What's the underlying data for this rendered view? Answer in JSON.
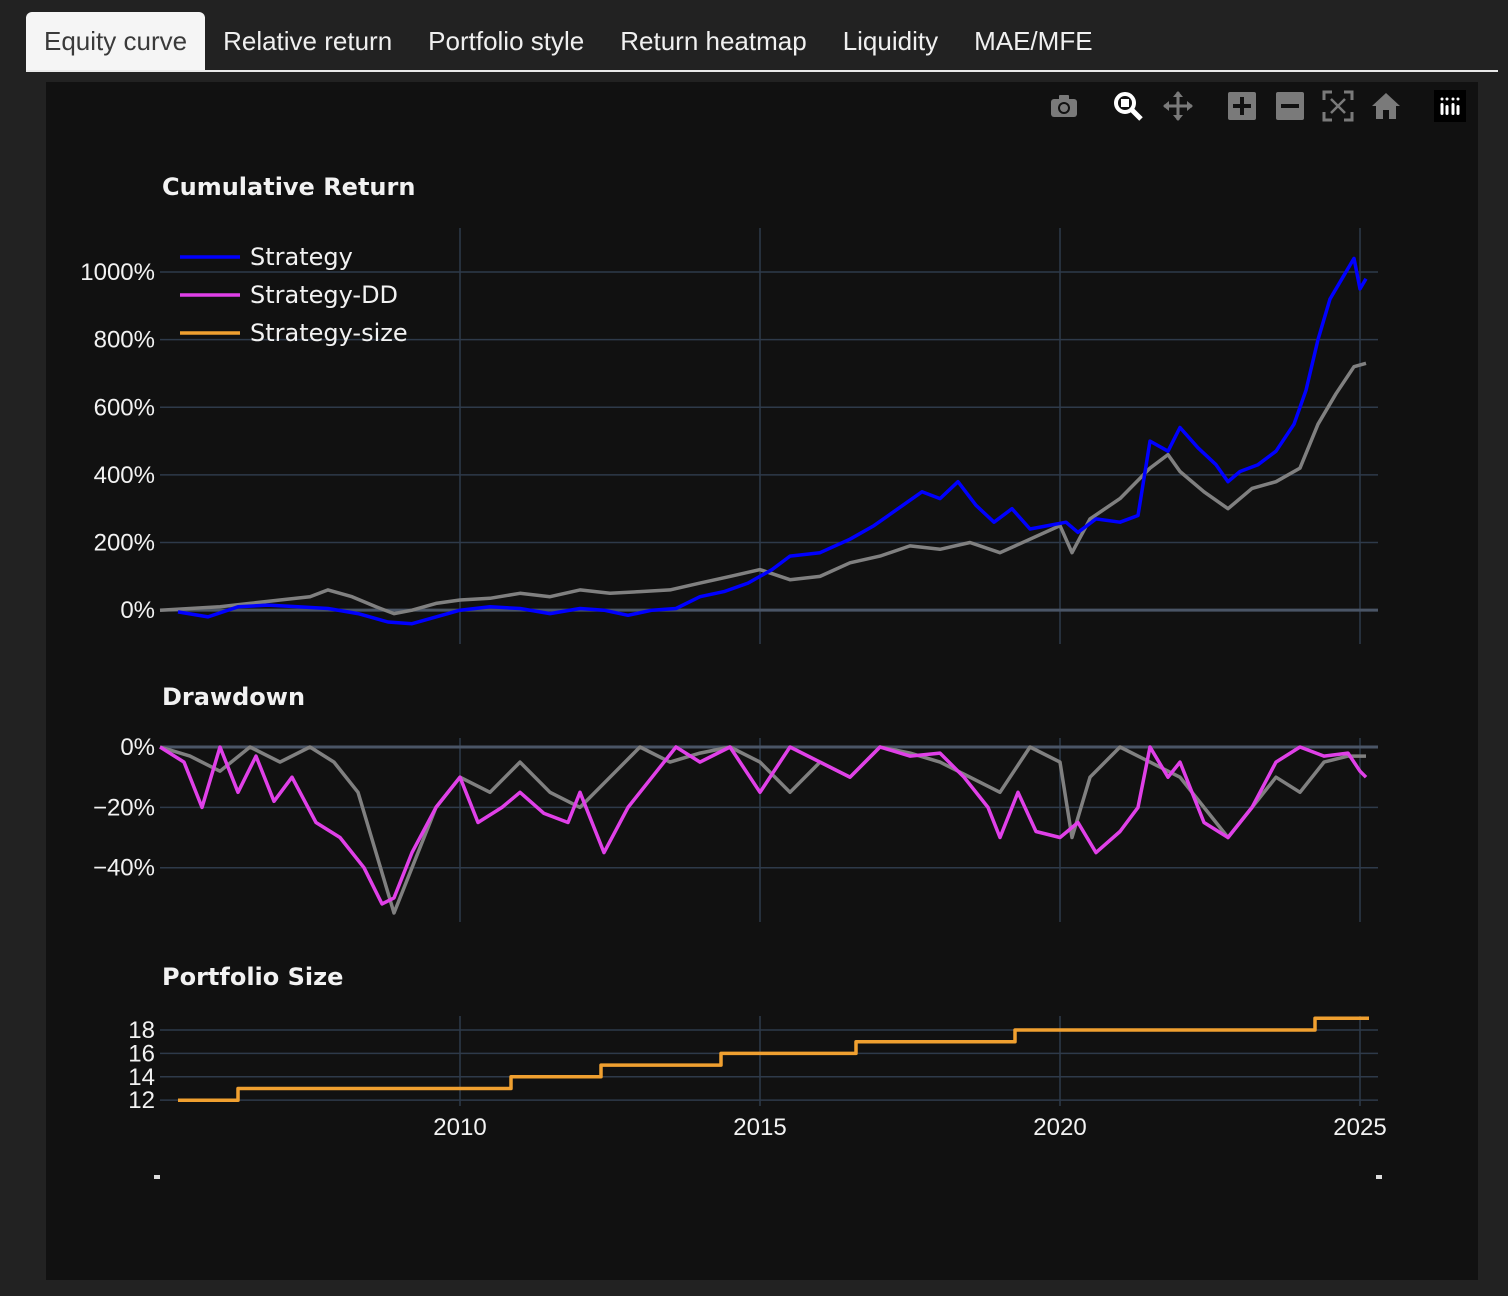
{
  "tabs": [
    {
      "label": "Equity curve",
      "active": true
    },
    {
      "label": "Relative return",
      "active": false
    },
    {
      "label": "Portfolio style",
      "active": false
    },
    {
      "label": "Return heatmap",
      "active": false
    },
    {
      "label": "Liquidity",
      "active": false
    },
    {
      "label": "MAE/MFE",
      "active": false
    }
  ],
  "modebar": [
    "camera-icon",
    "zoom-icon",
    "pan-icon",
    "zoom-in-icon",
    "zoom-out-icon",
    "autoscale-icon",
    "home-icon",
    "plotly-logo-icon"
  ],
  "colors": {
    "strategy": "#0000ff",
    "benchmark": "#808080",
    "strategy_dd": "#e040e8",
    "strategy_size": "#f0a030",
    "grid": "#2e3a4a"
  },
  "chart_data": [
    {
      "type": "line",
      "title": "Cumulative Return",
      "y_ticks": [
        "0%",
        "200%",
        "400%",
        "600%",
        "800%",
        "1000%"
      ],
      "x_ticks": [
        "2010",
        "2015",
        "2020",
        "2025"
      ],
      "ylim": [
        -100,
        1130
      ],
      "xlim": [
        2005.0,
        2025.3
      ],
      "legend_position": "top-left",
      "series": [
        {
          "name": "Strategy",
          "color_key": "strategy",
          "x": [
            2005.3,
            2005.8,
            2006.3,
            2006.8,
            2007.3,
            2007.8,
            2008.3,
            2008.8,
            2009.2,
            2009.6,
            2010.0,
            2010.5,
            2011.0,
            2011.5,
            2012.0,
            2012.4,
            2012.8,
            2013.2,
            2013.6,
            2014.0,
            2014.4,
            2014.8,
            2015.2,
            2015.5,
            2016.0,
            2016.5,
            2016.9,
            2017.3,
            2017.7,
            2018.0,
            2018.3,
            2018.6,
            2018.9,
            2019.2,
            2019.5,
            2019.8,
            2020.1,
            2020.3,
            2020.6,
            2021.0,
            2021.3,
            2021.5,
            2021.8,
            2022.0,
            2022.3,
            2022.6,
            2022.8,
            2023.0,
            2023.3,
            2023.6,
            2023.9,
            2024.1,
            2024.3,
            2024.5,
            2024.7,
            2024.9,
            2025.0,
            2025.1
          ],
          "y": [
            -5,
            -20,
            10,
            15,
            10,
            5,
            -10,
            -35,
            -40,
            -20,
            0,
            10,
            5,
            -10,
            5,
            0,
            -15,
            0,
            5,
            40,
            55,
            80,
            120,
            160,
            170,
            210,
            250,
            300,
            350,
            330,
            380,
            310,
            260,
            300,
            240,
            250,
            260,
            230,
            270,
            260,
            280,
            500,
            470,
            540,
            480,
            430,
            380,
            410,
            430,
            470,
            550,
            650,
            800,
            920,
            980,
            1040,
            950,
            980
          ]
        },
        {
          "name": "",
          "color_key": "benchmark",
          "x": [
            2005.0,
            2005.5,
            2006.0,
            2006.5,
            2007.0,
            2007.5,
            2007.8,
            2008.2,
            2008.6,
            2008.9,
            2009.2,
            2009.6,
            2010.0,
            2010.5,
            2011.0,
            2011.5,
            2012.0,
            2012.5,
            2013.0,
            2013.5,
            2014.0,
            2014.5,
            2015.0,
            2015.5,
            2016.0,
            2016.5,
            2017.0,
            2017.5,
            2018.0,
            2018.5,
            2019.0,
            2019.5,
            2020.0,
            2020.2,
            2020.5,
            2021.0,
            2021.5,
            2021.8,
            2022.0,
            2022.4,
            2022.8,
            2023.2,
            2023.6,
            2024.0,
            2024.3,
            2024.6,
            2024.9,
            2025.1
          ],
          "y": [
            0,
            5,
            10,
            20,
            30,
            40,
            60,
            40,
            10,
            -10,
            0,
            20,
            30,
            35,
            50,
            40,
            60,
            50,
            55,
            60,
            80,
            100,
            120,
            90,
            100,
            140,
            160,
            190,
            180,
            200,
            170,
            210,
            250,
            170,
            270,
            330,
            420,
            460,
            410,
            350,
            300,
            360,
            380,
            420,
            550,
            640,
            720,
            730
          ]
        }
      ]
    },
    {
      "type": "line",
      "title": "Drawdown",
      "y_ticks": [
        "0%",
        "−20%",
        "−40%"
      ],
      "ylim": [
        -58,
        3
      ],
      "xlim": [
        2005.0,
        2025.3
      ],
      "series": [
        {
          "name": "Strategy-DD",
          "color_key": "strategy_dd",
          "x": [
            2005.0,
            2005.4,
            2005.7,
            2006.0,
            2006.3,
            2006.6,
            2006.9,
            2007.2,
            2007.6,
            2008.0,
            2008.4,
            2008.7,
            2008.9,
            2009.2,
            2009.6,
            2010.0,
            2010.3,
            2010.7,
            2011.0,
            2011.4,
            2011.8,
            2012.0,
            2012.4,
            2012.8,
            2013.2,
            2013.6,
            2014.0,
            2014.5,
            2015.0,
            2015.5,
            2016.0,
            2016.5,
            2017.0,
            2017.5,
            2018.0,
            2018.4,
            2018.8,
            2019.0,
            2019.3,
            2019.6,
            2020.0,
            2020.3,
            2020.6,
            2021.0,
            2021.3,
            2021.5,
            2021.8,
            2022.0,
            2022.4,
            2022.8,
            2023.2,
            2023.6,
            2024.0,
            2024.4,
            2024.8,
            2025.0,
            2025.1
          ],
          "y": [
            0,
            -5,
            -20,
            0,
            -15,
            -3,
            -18,
            -10,
            -25,
            -30,
            -40,
            -52,
            -50,
            -35,
            -20,
            -10,
            -25,
            -20,
            -15,
            -22,
            -25,
            -15,
            -35,
            -20,
            -10,
            0,
            -5,
            0,
            -15,
            0,
            -5,
            -10,
            0,
            -3,
            -2,
            -10,
            -20,
            -30,
            -15,
            -28,
            -30,
            -25,
            -35,
            -28,
            -20,
            0,
            -10,
            -5,
            -25,
            -30,
            -20,
            -5,
            0,
            -3,
            -2,
            -8,
            -10
          ]
        },
        {
          "name": "",
          "color_key": "benchmark",
          "x": [
            2005.0,
            2005.5,
            2006.0,
            2006.5,
            2007.0,
            2007.5,
            2007.9,
            2008.3,
            2008.6,
            2008.9,
            2009.2,
            2009.6,
            2010.0,
            2010.5,
            2011.0,
            2011.5,
            2012.0,
            2012.5,
            2013.0,
            2013.5,
            2014.0,
            2014.5,
            2015.0,
            2015.5,
            2016.0,
            2016.5,
            2017.0,
            2017.5,
            2018.0,
            2018.5,
            2019.0,
            2019.5,
            2020.0,
            2020.2,
            2020.5,
            2021.0,
            2021.5,
            2022.0,
            2022.4,
            2022.8,
            2023.2,
            2023.6,
            2024.0,
            2024.4,
            2024.8,
            2025.1
          ],
          "y": [
            0,
            -3,
            -8,
            0,
            -5,
            0,
            -5,
            -15,
            -35,
            -55,
            -40,
            -20,
            -10,
            -15,
            -5,
            -15,
            -20,
            -10,
            0,
            -5,
            -2,
            0,
            -5,
            -15,
            -5,
            -10,
            0,
            -2,
            -5,
            -10,
            -15,
            0,
            -5,
            -30,
            -10,
            0,
            -5,
            -10,
            -20,
            -30,
            -20,
            -10,
            -15,
            -5,
            -3,
            -3
          ]
        }
      ]
    },
    {
      "type": "line",
      "title": "Portfolio Size",
      "y_ticks": [
        "12",
        "14",
        "16",
        "18"
      ],
      "ylim": [
        11.5,
        19.2
      ],
      "xlim": [
        2005.0,
        2025.3
      ],
      "x_ticks": [
        "2010",
        "2015",
        "2020",
        "2025"
      ],
      "series": [
        {
          "name": "Strategy-size",
          "color_key": "strategy_size",
          "shape": "step",
          "x": [
            2005.3,
            2006.3,
            2010.85,
            2012.35,
            2014.35,
            2016.6,
            2019.25,
            2024.25,
            2025.15
          ],
          "y": [
            12,
            13,
            14,
            15,
            16,
            17,
            18,
            19,
            19
          ]
        }
      ]
    }
  ]
}
